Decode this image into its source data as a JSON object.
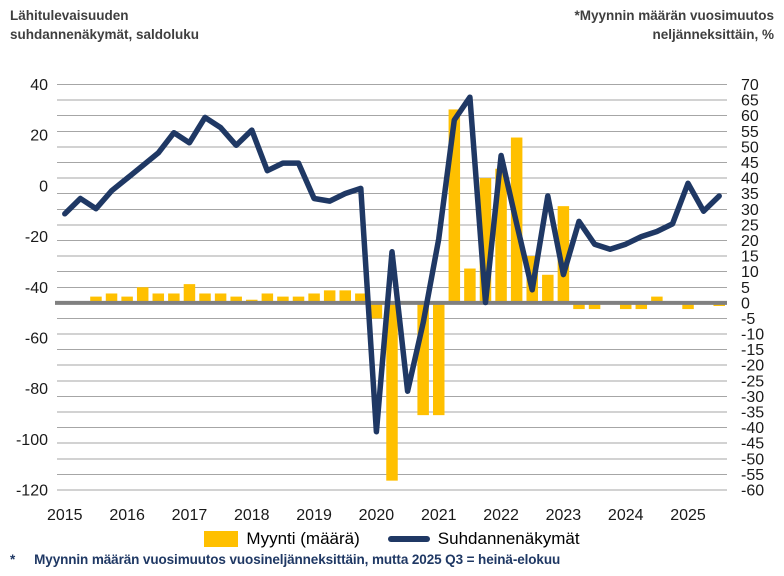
{
  "header": {
    "title_left_line1": "Lähitulevaisuuden",
    "title_left_line2": "suhdannenäkymät, saldoluku",
    "title_right_line1": "*Myynnin määrän vuosimuutos",
    "title_right_line2": "neljänneksittäin, %"
  },
  "footnote": {
    "marker": "*",
    "text": "Myynnin määrän vuosimuutos vuosineljänneksittäin, mutta 2025 Q3 = heinä-elokuu"
  },
  "colors": {
    "bar": "#FFC000",
    "line": "#1F3864",
    "zero_line": "#808080",
    "gridline": "#A6A6A6",
    "axis_text": "#1a1a1a",
    "title_text": "#3f3f3f",
    "footnote_text": "#1F3864"
  },
  "chart_data": {
    "type": "bar+line dual-axis, quarterly",
    "x_start": "2015Q1",
    "x_end": "2025Q3",
    "years": [
      "2015",
      "2016",
      "2017",
      "2018",
      "2019",
      "2020",
      "2021",
      "2022",
      "2023",
      "2024",
      "2025"
    ],
    "left_axis": {
      "label": "Suhdannenäkymät, saldoluku",
      "max": 40,
      "min": -120,
      "ticks": [
        40,
        20,
        0,
        -20,
        -40,
        -60,
        -80,
        -100,
        -120
      ]
    },
    "right_axis": {
      "label": "Myynnin määrän vuosimuutos, %",
      "max": 70,
      "min": -60,
      "ticks": [
        70,
        65,
        60,
        55,
        50,
        45,
        40,
        35,
        30,
        25,
        20,
        15,
        10,
        5,
        0,
        -5,
        -10,
        -15,
        -20,
        -25,
        -30,
        -35,
        -40,
        -45,
        -50,
        -55,
        -60
      ]
    },
    "grid": "horizontal, every 5 right-axis units; thick gray line at right-axis 0",
    "legend_position": "bottom center",
    "series": [
      {
        "name": "Myynti (määrä)",
        "type": "bar",
        "axis": "right",
        "unit": "%",
        "values": [
          null,
          null,
          2,
          3,
          2,
          5,
          3,
          3,
          6,
          3,
          3,
          2,
          1,
          3,
          2,
          2,
          3,
          4,
          4,
          3,
          -5,
          -57,
          0,
          -36,
          -36,
          62,
          11,
          40,
          43,
          53,
          15,
          9,
          31,
          -2,
          -2,
          0,
          -2,
          -2,
          2,
          0,
          -2,
          0,
          -1
        ]
      },
      {
        "name": "Suhdannenäkymät",
        "type": "line",
        "axis": "left",
        "unit": "saldoluku",
        "values": [
          -11,
          -5,
          -9,
          -2,
          3,
          8,
          13,
          21,
          17,
          27,
          23,
          16,
          22,
          6,
          9,
          9,
          -5,
          -6,
          -3,
          -1,
          -97,
          -26,
          -81,
          -54,
          -21,
          26,
          35,
          -46,
          12,
          -15,
          -41,
          -4,
          -35,
          -14,
          -23,
          -25,
          -23,
          -20,
          -18,
          -15,
          1,
          -10,
          -4
        ]
      }
    ]
  }
}
